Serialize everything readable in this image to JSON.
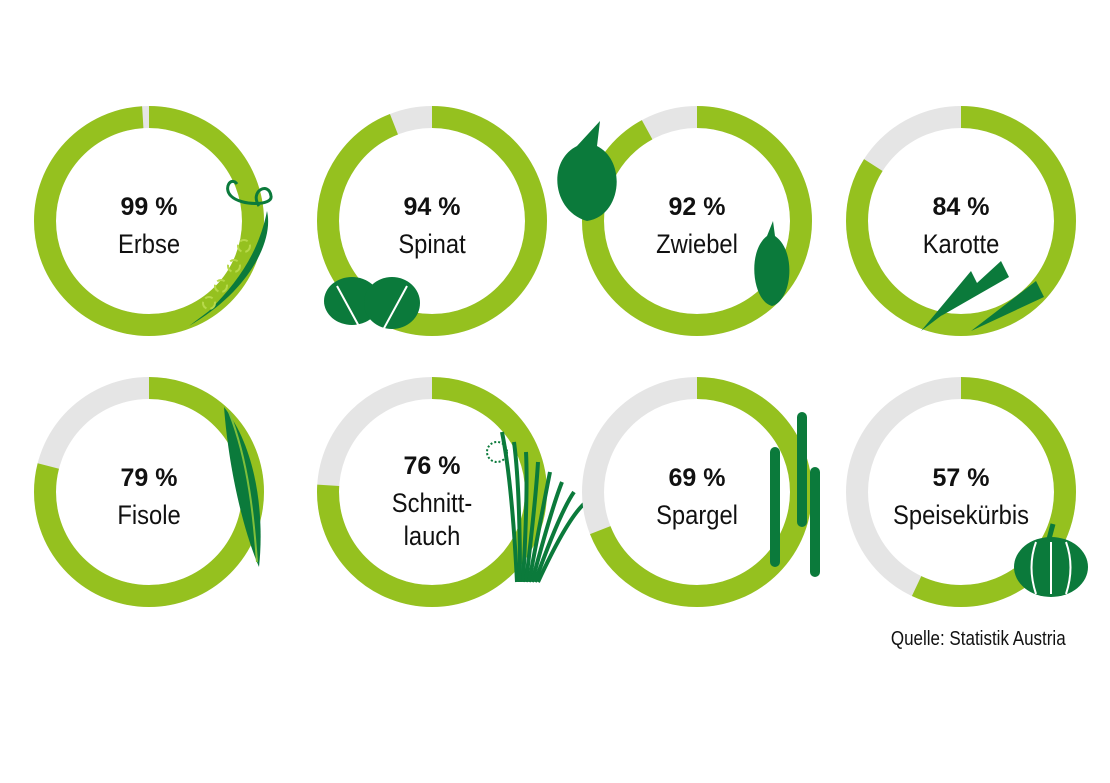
{
  "chart_data": {
    "type": "donut",
    "unit": "%",
    "items": [
      {
        "label": "Erbse",
        "value": 99,
        "icon": "pea-pod-icon"
      },
      {
        "label": "Spinat",
        "value": 94,
        "icon": "spinach-leaves-icon"
      },
      {
        "label": "Zwiebel",
        "value": 92,
        "icon": "onion-icon"
      },
      {
        "label": "Karotte",
        "value": 84,
        "icon": "carrot-icon"
      },
      {
        "label": "Fisole",
        "value": 79,
        "icon": "green-bean-icon"
      },
      {
        "label": "Schnitt-\nlauch",
        "value": 76,
        "icon": "chives-icon"
      },
      {
        "label": "Spargel",
        "value": 69,
        "icon": "asparagus-icon"
      },
      {
        "label": "Speisekürbis",
        "value": 57,
        "icon": "pumpkin-icon"
      }
    ],
    "range": [
      0,
      100
    ],
    "colors": {
      "value": "#95c11f",
      "remainder": "#e5e5e5",
      "icon": "#0b7a3b"
    }
  },
  "source": "Quelle: Statistik Austria"
}
